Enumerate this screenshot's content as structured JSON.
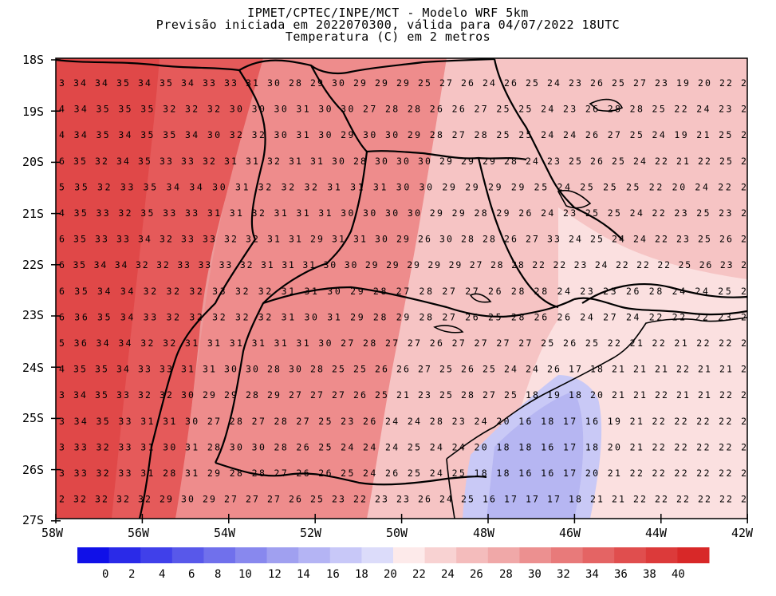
{
  "header": {
    "line1": "IPMET/CPTEC/INPE/MCT - Modelo WRF 5km",
    "line2": "Previsão iniciada em 2022070300, válida para 04/07/2022 18UTC",
    "line3": "Temperatura (C) em 2 metros"
  },
  "axes": {
    "lat_labels": [
      "18S",
      "19S",
      "20S",
      "21S",
      "22S",
      "23S",
      "24S",
      "25S",
      "26S",
      "27S"
    ],
    "lon_labels": [
      "58W",
      "56W",
      "54W",
      "52W",
      "50W",
      "48W",
      "46W",
      "44W",
      "42W"
    ]
  },
  "colorbar": {
    "labels": [
      "0",
      "2",
      "4",
      "6",
      "8",
      "10",
      "12",
      "14",
      "16",
      "18",
      "20",
      "22",
      "24",
      "26",
      "28",
      "30",
      "32",
      "34",
      "36",
      "38",
      "40"
    ],
    "colors": [
      "#1010e8",
      "#2a2ae8",
      "#4040ea",
      "#5858ea",
      "#7070ec",
      "#8888ee",
      "#a0a0f0",
      "#b4b4f4",
      "#c8c8f8",
      "#dcdcfa",
      "#fdeaea",
      "#f8d2d2",
      "#f4bcbc",
      "#f0a8a8",
      "#ec9090",
      "#e87a7a",
      "#e46464",
      "#e04e4e",
      "#dc3a3a",
      "#d82828"
    ]
  },
  "grid_values": [
    "3 34 34 35 34 35 34 33 33 31 30 28 29 30 29 29 29 25 27 26 24 26 25 24 23 26 25 27 23 19 20 22 2",
    "4 34 35 35 35 32 32 32 30 30 30 31 30 30 27 28 28 26 26 27 25 25 24 23 26 28 28 25 22 24 23 2",
    "4 34 35 34 35 35 34 30 32 32 30 31 30 29 30 30 29 28 27 28 25 25 24 24 26 27 25 24 19 21 25 2",
    "6 35 32 34 35 33 33 32 31 31 32 31 31 30 28 30 30 30 29 29 29 28 24 23 25 26 25 24 22 21 22 25 2",
    "5 35 32 33 35 34 34 30 31 32 32 32 31 31 31 30 30 29 29 29 29 25 24 25 25 25 22 20 24 22 2",
    "4 35 33 32 35 33 33 31 31 32 31 31 31 30 30 30 30 29 29 28 29 26 24 23 25 25 24 22 23 25 23 2",
    "6 35 33 33 34 32 33 33 32 32 31 31 29 31 31 30 29 26 30 28 28 26 27 33 24 25 24 24 22 23 25 26 2",
    "6 35 34 34 32 32 33 33 33 32 31 31 31 30 30 29 29 29 29 29 27 28 28 22 22 23 24 22 22 22 25 26 23 2",
    "6 35 34 34 32 32 32 33 32 32 31 31 30 29 28 27 28 27 27 26 28 28 24 23 23 26 28 24 24 25 2",
    "6 36 35 34 33 32 32 32 32 32 31 30 31 29 28 29 28 27 26 25 28 26 26 24 27 24 22 22 22 23 2",
    "5 36 34 34 32 32 31 31 31 31 31 31 30 27 28 27 27 26 27 27 27 27 25 26 25 22 21 22 21 22 22 2",
    "4 35 35 34 33 33 31 31 30 30 28 30 28 25 25 26 26 27 25 26 25 24 24 26 17 18 21 21 21 22 21 21 2",
    "3 34 35 33 32 32 30 29 29 28 29 27 27 27 26 25 21 23 25 28 27 25 18 19 18 20 21 21 22 21 21 22 2",
    "3 34 35 33 31 31 30 27 28 27 28 27 25 23 26 24 24 28 23 24 20 16 18 17 16 19 21 22 22 22 22 2",
    "3 33 32 33 31 30 31 28 30 30 28 26 25 24 24 24 25 24 24 20 18 18 16 17 18 20 21 22 22 22 22 2",
    "3 33 32 33 31 28 31 29 28 28 27 26 26 25 24 26 25 24 25 18 18 16 16 17 20 21 22 22 22 22 22 2",
    "2 32 32 32 32 29 30 29 27 27 27 26 25 23 22 23 23 26 24 25 16 17 17 17 18 21 21 22 22 22 22 22 2"
  ]
}
